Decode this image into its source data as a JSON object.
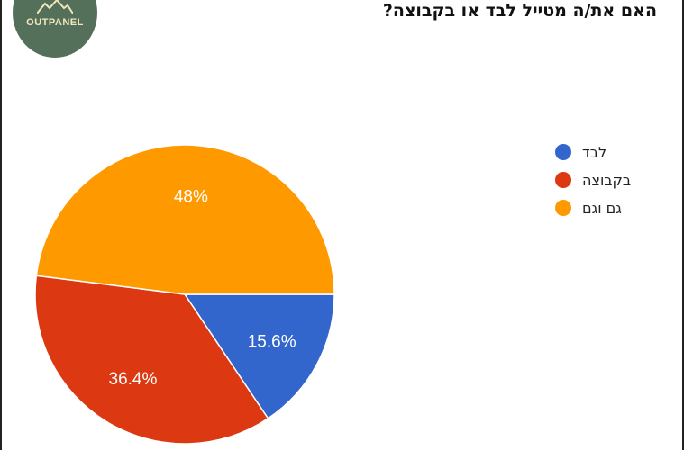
{
  "logo": {
    "text": "OUTPANEL",
    "icon": "mountain-icon"
  },
  "chart_data": {
    "type": "pie",
    "title": "האם את/ה מטייל לבד או בקבוצה?",
    "categories": [
      "לבד",
      "בקבוצה",
      "גם וגם"
    ],
    "values": [
      15.6,
      36.4,
      48
    ],
    "labels": [
      "15.6%",
      "36.4%",
      "48%"
    ],
    "colors": [
      "#3366cc",
      "#dc3912",
      "#ff9900"
    ],
    "legend_position": "right"
  }
}
